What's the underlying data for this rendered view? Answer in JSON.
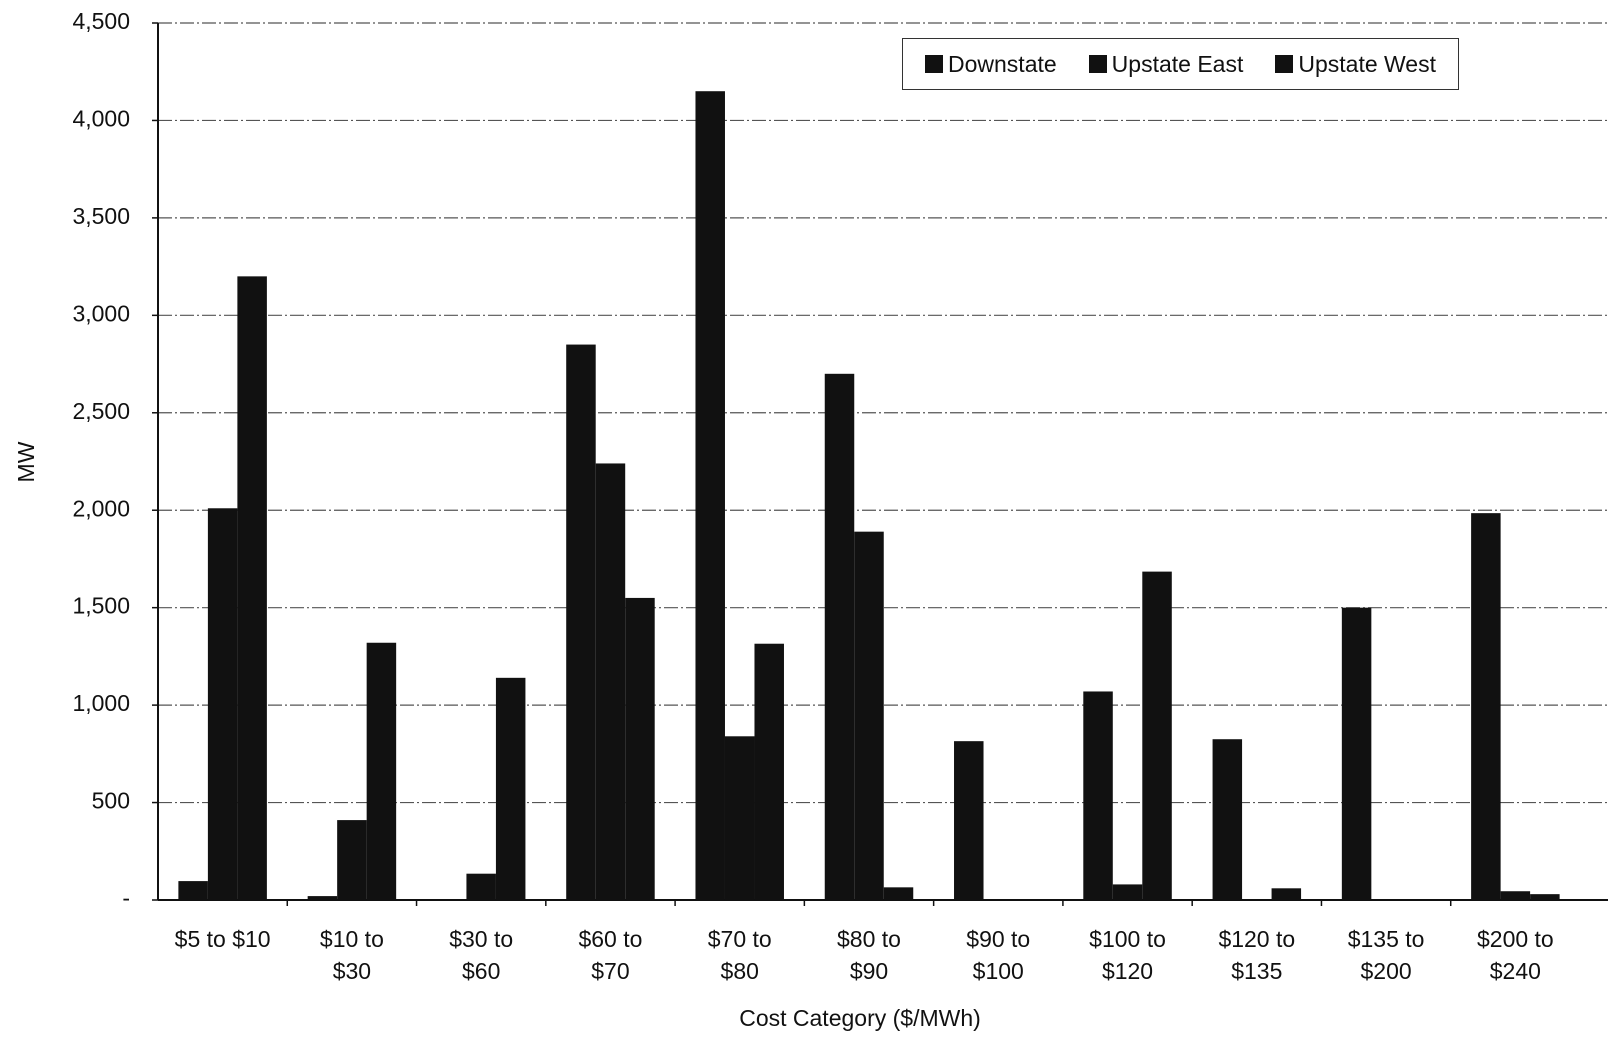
{
  "chart_data": {
    "type": "bar",
    "categories": [
      "$5 to $10",
      "$10 to $30",
      "$30 to $60",
      "$60 to $70",
      "$70 to $80",
      "$80 to $90",
      "$90 to $100",
      "$100 to $120",
      "$120 to $135",
      "$135 to $200",
      "$200 to $240"
    ],
    "series": [
      {
        "name": "Downstate",
        "color": "#111111",
        "values": [
          97,
          20,
          0,
          2850,
          4150,
          2700,
          815,
          1070,
          825,
          1500,
          1985
        ]
      },
      {
        "name": "Upstate East",
        "color": "#111111",
        "values": [
          2010,
          410,
          135,
          2240,
          840,
          1890,
          0,
          80,
          0,
          0,
          45
        ]
      },
      {
        "name": "Upstate West",
        "color": "#111111",
        "values": [
          3200,
          1320,
          1140,
          1550,
          1315,
          65,
          0,
          1685,
          60,
          0,
          30
        ]
      }
    ],
    "y_label": "MW",
    "x_label": "Cost Category ($/MWh)",
    "ylim": [
      0,
      4500
    ],
    "yticks": [
      {
        "value": 0,
        "label": "-"
      },
      500,
      {
        "value": 1000,
        "label": "1,000"
      },
      {
        "value": 1500,
        "label": "1,500"
      },
      {
        "value": 2000,
        "label": "2,000"
      },
      {
        "value": 2500,
        "label": "2,500"
      },
      {
        "value": 3000,
        "label": "3,000"
      },
      {
        "value": 3500,
        "label": "3,500"
      },
      {
        "value": 4000,
        "label": "4,000"
      },
      {
        "value": 4500,
        "label": "4,500"
      }
    ],
    "grid": true,
    "legend": "top-right"
  }
}
